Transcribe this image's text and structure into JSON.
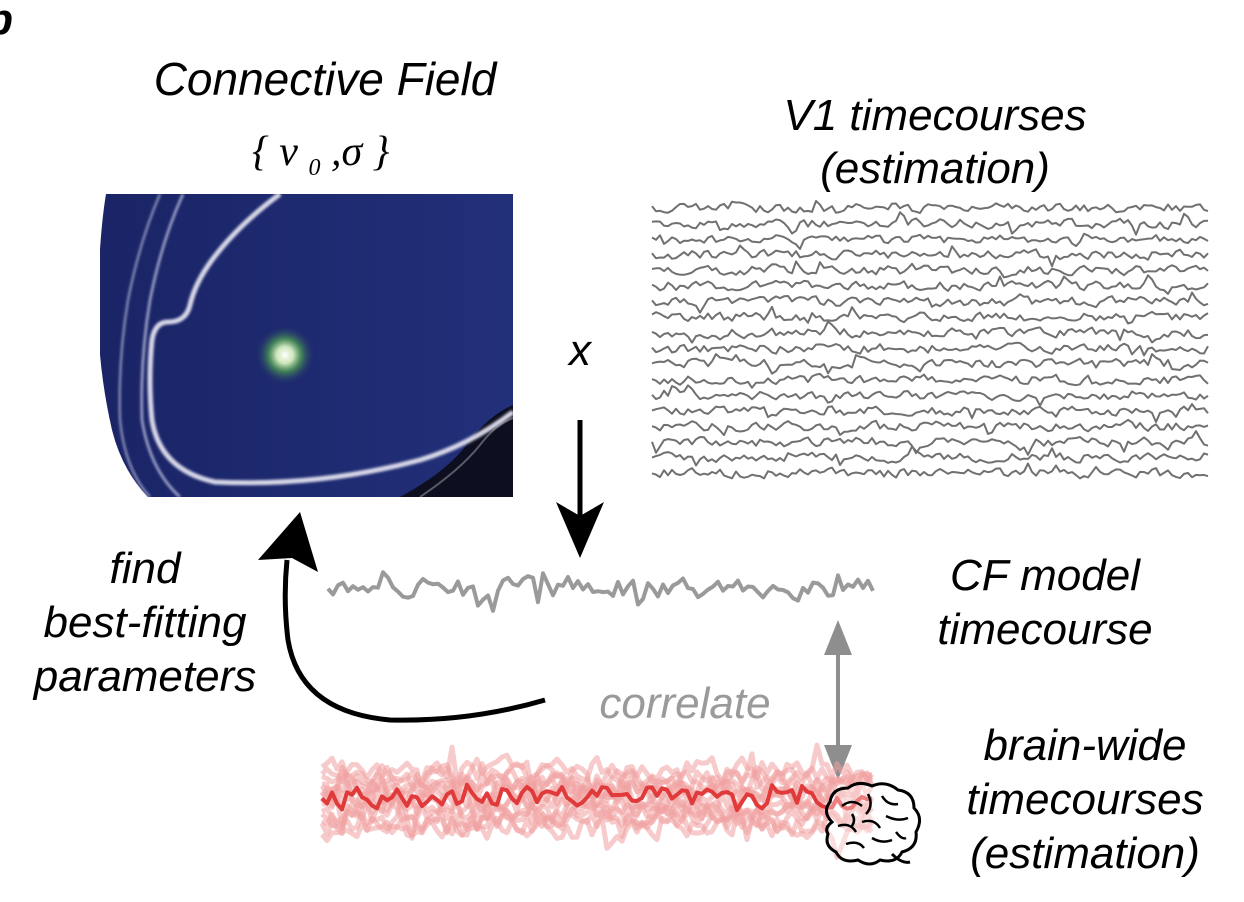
{
  "panel_letter": "b",
  "connective_field": {
    "title": "Connective Field",
    "params": {
      "open": "{",
      "v": "v",
      "sub": "0",
      "sep": ",σ",
      "close": "}"
    }
  },
  "v1": {
    "title_line1": "V1 timecourses",
    "title_line2": "(estimation)"
  },
  "operator": "x",
  "cf_model": {
    "line1": "CF model",
    "line2": "timecourse"
  },
  "find_params": {
    "line1": "find",
    "line2": "best-fitting",
    "line3": "parameters"
  },
  "correlate": "correlate",
  "brain_wide": {
    "line1": "brain-wide",
    "line2": "timecourses",
    "line3": "(estimation)"
  },
  "colors": {
    "cortex_blue": "#1f2a6e",
    "v1_trace": "#707070",
    "model_trace": "#9a9a9a",
    "brain_trace": "#e03a3a",
    "brain_trace_faint": "#f0a0a0",
    "correlate_text": "#9a9a9a",
    "arrow_black": "#000000",
    "arrow_gray": "#8e8e8e"
  },
  "icons": {
    "brain": "brain-icon",
    "cortex_map": "cortex-surface-map"
  }
}
